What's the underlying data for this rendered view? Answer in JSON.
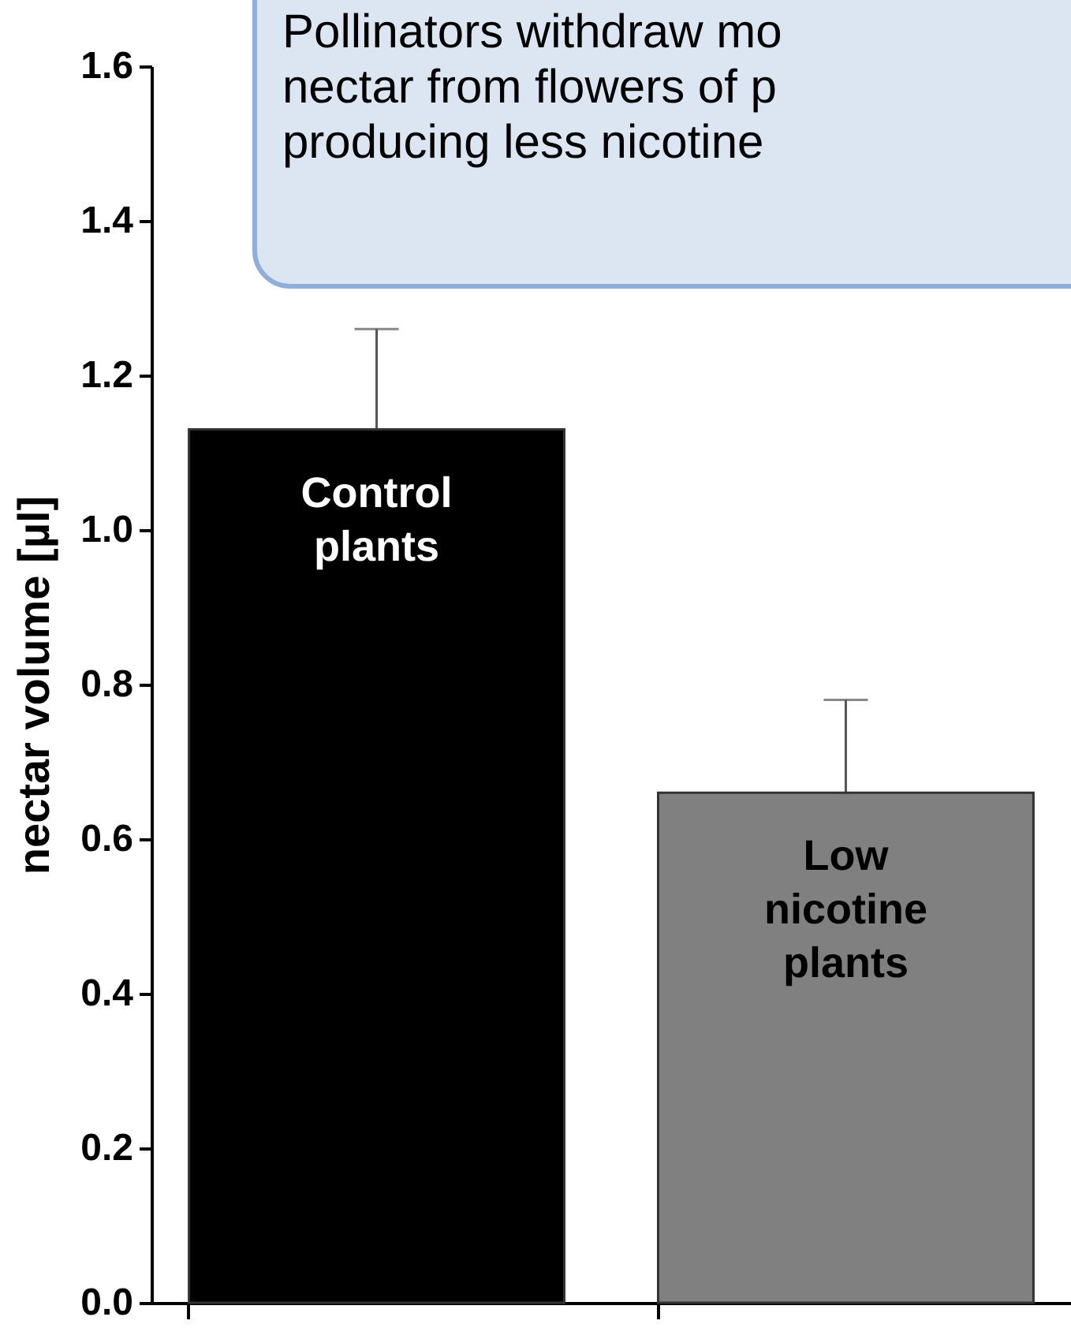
{
  "chart_data": {
    "type": "bar",
    "ylabel": "nectar volume [µl]",
    "categories": [
      "Control plants",
      "Low nicotine plants"
    ],
    "values": [
      1.13,
      0.66
    ],
    "colors": [
      "#000000",
      "#808080"
    ],
    "errors": [
      0.13,
      0.12
    ],
    "ylim": [
      0,
      1.6
    ],
    "yticks": [
      {
        "value": 0,
        "label": "0.0"
      },
      {
        "value": 0.2,
        "label": "0.2"
      },
      {
        "value": 0.4,
        "label": "0.4"
      },
      {
        "value": 0.6,
        "label": "0.6"
      },
      {
        "value": 0.8,
        "label": "0.8"
      },
      {
        "value": 1.0,
        "label": "1.0"
      },
      {
        "value": 1.2,
        "label": "1.2"
      },
      {
        "value": 1.4,
        "label": "1.4"
      },
      {
        "value": 1.6,
        "label": "1.6"
      }
    ],
    "tick_labels": "y",
    "annotations": [
      "Pollinators withdraw mo\nnectar from flowers of p\nproducing less nicotine"
    ]
  }
}
